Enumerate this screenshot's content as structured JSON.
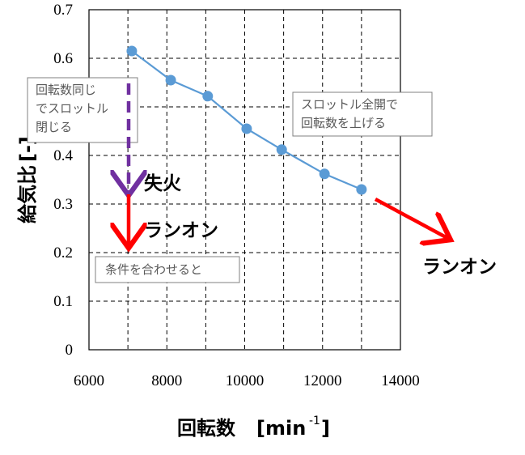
{
  "chart_data": {
    "type": "line",
    "xlabel": "回転数",
    "xlabel_unit": "[min",
    "xlabel_sup": "-1",
    "xlabel_close": "]",
    "ylabel": "給気比",
    "ylabel_unit": "[-]",
    "xlim": [
      6000,
      14000
    ],
    "ylim": [
      0,
      0.7
    ],
    "xticks": [
      "6000",
      "8000",
      "10000",
      "12000",
      "14000"
    ],
    "yticks": [
      "0",
      "0.1",
      "0.2",
      "0.3",
      "0.4",
      "0.5",
      "0.6",
      "0.7"
    ],
    "grid": true,
    "series": [
      {
        "color": "#5b9bd5",
        "x": [
          7100,
          8100,
          9050,
          10050,
          10950,
          12050,
          13000
        ],
        "y": [
          0.615,
          0.555,
          0.522,
          0.455,
          0.412,
          0.362,
          0.33
        ]
      }
    ],
    "annotations": {
      "box_left_line1": "回転数同じ",
      "box_left_line2": "でスロットル",
      "box_left_line3": "閉じる",
      "box_right_line1": "スロットル全開で",
      "box_right_line2": "回転数を上げる",
      "box_bottom": "条件を合わせると",
      "misfire": "失火",
      "runon_1": "ランオン",
      "runon_2": "ランオン"
    },
    "colors": {
      "throttle_arrow": "#7030a0",
      "runon_arrow": "#ff0000",
      "grid": "#000000"
    }
  }
}
